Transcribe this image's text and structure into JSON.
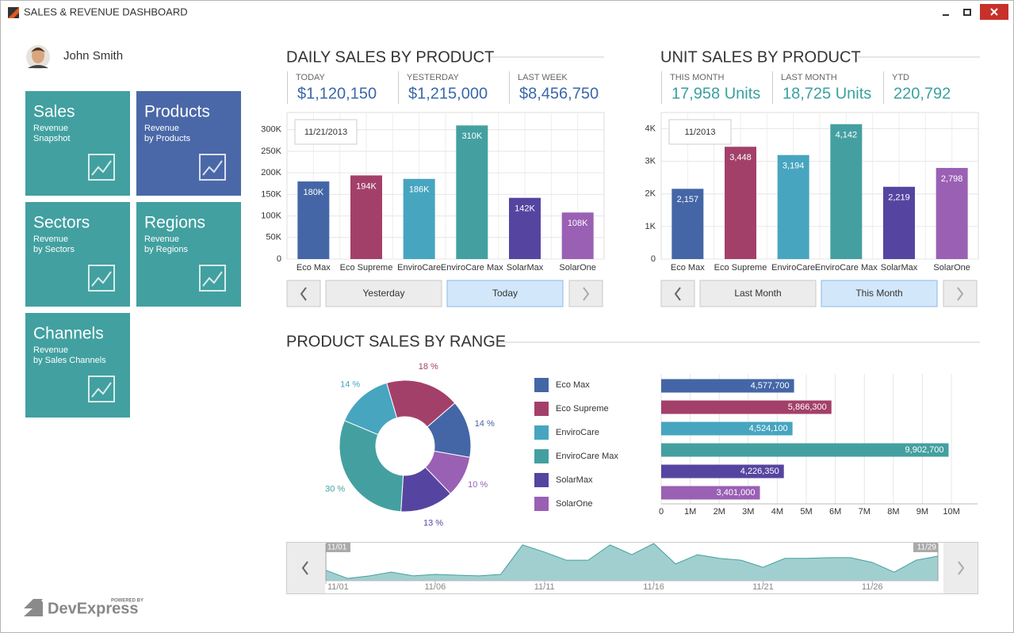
{
  "window": {
    "title": "SALES & REVENUE DASHBOARD"
  },
  "user": {
    "name": "John Smith"
  },
  "colors": [
    "#4466a6",
    "#a3406a",
    "#47a5c0",
    "#44a0a0",
    "#5545a0",
    "#9a60b4"
  ],
  "tiles": [
    {
      "title": "Sales",
      "subtitle": [
        "Revenue",
        "Snapshot"
      ]
    },
    {
      "title": "Products",
      "subtitle": [
        "Revenue",
        "by Products"
      ]
    },
    {
      "title": "Sectors",
      "subtitle": [
        "Revenue",
        "by Sectors"
      ]
    },
    {
      "title": "Regions",
      "subtitle": [
        "Revenue",
        "by Regions"
      ]
    },
    {
      "title": "Channels",
      "subtitle": [
        "Revenue",
        "by Sales Channels"
      ]
    }
  ],
  "daily": {
    "title": "DAILY SALES BY PRODUCT",
    "kpis": [
      {
        "label": "TODAY",
        "value": "$1,120,150"
      },
      {
        "label": "YESTERDAY",
        "value": "$1,215,000"
      },
      {
        "label": "LAST WEEK",
        "value": "$8,456,750"
      }
    ],
    "buttons": [
      "Yesterday",
      "Today"
    ],
    "chart": {
      "type": "bar",
      "date": "11/21/2013",
      "categories": [
        "Eco Max",
        "Eco Supreme",
        "EnviroCare",
        "EnviroCare Max",
        "SolarMax",
        "SolarOne"
      ],
      "values": [
        180000,
        194000,
        186000,
        310000,
        142000,
        108000
      ],
      "value_labels": [
        "180K",
        "194K",
        "186K",
        "310K",
        "142K",
        "108K"
      ],
      "ylim": [
        0,
        340000
      ],
      "yticks": [
        0,
        {
          "value": 50000,
          "label": "50K"
        },
        {
          "value": 100000,
          "label": "100K"
        },
        {
          "value": 150000,
          "label": "150K"
        },
        {
          "value": 200000,
          "label": "200K"
        },
        {
          "value": 250000,
          "label": "250K"
        },
        {
          "value": 300000,
          "label": "300K"
        }
      ],
      "grid": true
    }
  },
  "unit": {
    "title": "UNIT SALES BY PRODUCT",
    "kpis": [
      {
        "label": "THIS MONTH",
        "value": "17,958 Units"
      },
      {
        "label": "LAST MONTH",
        "value": "18,725 Units"
      },
      {
        "label": "YTD",
        "value": "220,792"
      }
    ],
    "buttons": [
      "Last Month",
      "This Month"
    ],
    "chart": {
      "type": "bar",
      "date": "11/2013",
      "categories": [
        "Eco Max",
        "Eco Supreme",
        "EnviroCare",
        "EnviroCare Max",
        "SolarMax",
        "SolarOne"
      ],
      "values": [
        2157,
        3448,
        3194,
        4142,
        2219,
        2798
      ],
      "value_labels": [
        "2,157",
        "3,448",
        "3,194",
        "4,142",
        "2,219",
        "2,798"
      ],
      "ylim": [
        0,
        4500
      ],
      "yticks": [
        0,
        {
          "value": 1000,
          "label": "1K"
        },
        {
          "value": 2000,
          "label": "2K"
        },
        {
          "value": 3000,
          "label": "3K"
        },
        {
          "value": 4000,
          "label": "4K"
        }
      ],
      "grid": true
    }
  },
  "range": {
    "title": "PRODUCT SALES BY RANGE",
    "pie": {
      "type": "donut",
      "categories": [
        "Eco Max",
        "Eco Supreme",
        "EnviroCare",
        "EnviroCare Max",
        "SolarMax",
        "SolarOne"
      ],
      "values": [
        14,
        18,
        14,
        30,
        13,
        10
      ],
      "value_labels": [
        "14 %",
        "18 %",
        "14 %",
        "30 %",
        "13 %",
        "10 %"
      ]
    },
    "bars": {
      "type": "hbar",
      "values": [
        4577700,
        5866300,
        4524100,
        9902700,
        4226350,
        3401000
      ],
      "value_labels": [
        "4,577,700",
        "5,866,300",
        "4,524,100",
        "9,902,700",
        "4,226,350",
        "3,401,000"
      ],
      "xlim": [
        0,
        10900000
      ],
      "xticks": [
        0,
        {
          "value": 1000000,
          "label": "1M"
        },
        {
          "value": 2000000,
          "label": "2M"
        },
        {
          "value": 3000000,
          "label": "3M"
        },
        {
          "value": 4000000,
          "label": "4M"
        },
        {
          "value": 5000000,
          "label": "5M"
        },
        {
          "value": 6000000,
          "label": "6M"
        },
        {
          "value": 7000000,
          "label": "7M"
        },
        {
          "value": 8000000,
          "label": "8M"
        },
        {
          "value": 9000000,
          "label": "9M"
        },
        {
          "value": 10000000,
          "label": "10M"
        }
      ],
      "grid": true
    },
    "timeline": {
      "type": "area",
      "color": "#44a0a0",
      "x": [
        "11/01",
        null,
        null,
        null,
        null,
        "11/06",
        null,
        null,
        null,
        null,
        "11/11",
        null,
        null,
        null,
        null,
        "11/16",
        null,
        null,
        null,
        null,
        "11/21",
        null,
        null,
        null,
        null,
        "11/26",
        null,
        null,
        null
      ],
      "values": [
        28,
        6,
        13,
        23,
        13,
        17,
        15,
        13,
        17,
        96,
        77,
        55,
        55,
        96,
        70,
        100,
        45,
        70,
        60,
        55,
        36,
        60,
        60,
        62,
        62,
        49,
        23,
        55,
        66
      ],
      "ylim": [
        0,
        100
      ],
      "selection": [
        "11/01",
        "11/29"
      ]
    }
  },
  "branding": {
    "powered_by": "POWERED BY",
    "name": "DevExpress"
  }
}
